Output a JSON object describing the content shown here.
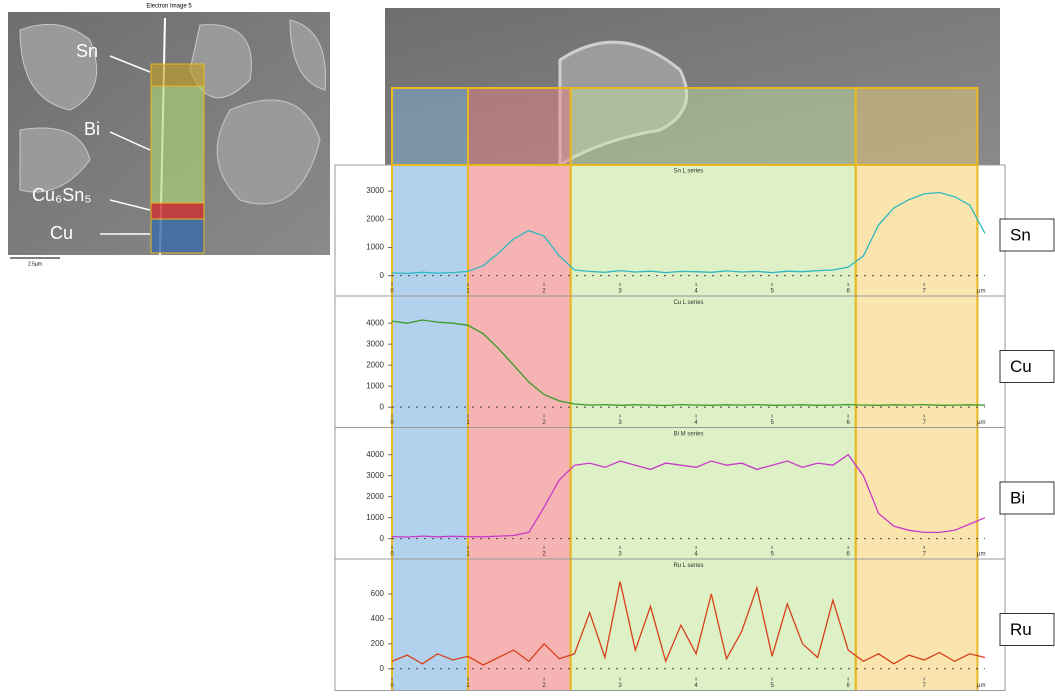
{
  "image": {
    "title": "Electron Image 5",
    "scale": "2.5µm",
    "labels": [
      "Sn",
      "Bi",
      "Cu₆Sn₅",
      "Cu"
    ]
  },
  "overlay": {
    "regions": [
      {
        "start": 0,
        "end": 1.0,
        "color": "#7fb3e0"
      },
      {
        "start": 1.0,
        "end": 2.35,
        "color": "#f08080"
      },
      {
        "start": 2.35,
        "end": 6.1,
        "color": "#c6e6a0"
      },
      {
        "start": 6.1,
        "end": 7.7,
        "color": "#f8d47a"
      }
    ]
  },
  "chart_data": [
    {
      "type": "line",
      "title": "Sn L series",
      "xlabel": "µm",
      "x": [
        0,
        0.2,
        0.4,
        0.6,
        0.8,
        1.0,
        1.2,
        1.4,
        1.6,
        1.8,
        2.0,
        2.2,
        2.4,
        2.6,
        2.8,
        3.0,
        3.2,
        3.4,
        3.6,
        3.8,
        4.0,
        4.2,
        4.4,
        4.6,
        4.8,
        5.0,
        5.2,
        5.4,
        5.6,
        5.8,
        6.0,
        6.2,
        6.4,
        6.6,
        6.8,
        7.0,
        7.2,
        7.4,
        7.6,
        7.8
      ],
      "xlim": [
        0,
        7.8
      ],
      "xticks": [
        0,
        1,
        2,
        3,
        4,
        5,
        6,
        7
      ],
      "ylim": [
        -260,
        3500
      ],
      "yticks": [
        0,
        1000,
        2000,
        3000
      ],
      "series": [
        {
          "name": "Sn",
          "color": "#2fb8c0",
          "values": [
            100,
            80,
            120,
            90,
            110,
            150,
            350,
            800,
            1300,
            1600,
            1400,
            700,
            200,
            150,
            120,
            180,
            130,
            160,
            110,
            150,
            140,
            120,
            170,
            130,
            150,
            110,
            160,
            140,
            180,
            200,
            300,
            700,
            1800,
            2400,
            2700,
            2900,
            2950,
            2800,
            2500,
            1500
          ]
        }
      ]
    },
    {
      "type": "line",
      "title": "Cu L series",
      "xlabel": "µm",
      "x": [
        0,
        0.2,
        0.4,
        0.6,
        0.8,
        1.0,
        1.2,
        1.4,
        1.6,
        1.8,
        2.0,
        2.2,
        2.4,
        2.6,
        2.8,
        3.0,
        3.2,
        3.4,
        3.6,
        3.8,
        4.0,
        4.2,
        4.4,
        4.6,
        4.8,
        5.0,
        5.2,
        5.4,
        5.6,
        5.8,
        6.0,
        6.2,
        6.4,
        6.6,
        6.8,
        7.0,
        7.2,
        7.4,
        7.6,
        7.8
      ],
      "xlim": [
        0,
        7.8
      ],
      "xticks": [
        0,
        1,
        2,
        3,
        4,
        5,
        6,
        7
      ],
      "ylim": [
        -350,
        4700
      ],
      "yticks": [
        0,
        1000,
        2000,
        3000,
        4000
      ],
      "series": [
        {
          "name": "Cu",
          "color": "#3a9a28",
          "values": [
            4100,
            4000,
            4150,
            4050,
            4000,
            3900,
            3500,
            2800,
            2000,
            1200,
            600,
            300,
            150,
            100,
            120,
            90,
            110,
            100,
            80,
            120,
            100,
            90,
            110,
            100,
            120,
            90,
            100,
            110,
            90,
            100,
            120,
            100,
            90,
            110,
            100,
            120,
            90,
            100,
            110,
            100
          ]
        }
      ]
    },
    {
      "type": "line",
      "title": "Bi M series",
      "xlabel": "µm",
      "x": [
        0,
        0.2,
        0.4,
        0.6,
        0.8,
        1.0,
        1.2,
        1.4,
        1.6,
        1.8,
        2.0,
        2.2,
        2.4,
        2.6,
        2.8,
        3.0,
        3.2,
        3.4,
        3.6,
        3.8,
        4.0,
        4.2,
        4.4,
        4.6,
        4.8,
        5.0,
        5.2,
        5.4,
        5.6,
        5.8,
        6.0,
        6.2,
        6.4,
        6.6,
        6.8,
        7.0,
        7.2,
        7.4,
        7.6,
        7.8
      ],
      "xlim": [
        0,
        7.8
      ],
      "xticks": [
        0,
        1,
        2,
        3,
        4,
        5,
        6,
        7
      ],
      "ylim": [
        -350,
        4700
      ],
      "yticks": [
        0,
        1000,
        2000,
        3000,
        4000
      ],
      "series": [
        {
          "name": "Bi",
          "color": "#c83ac8",
          "values": [
            100,
            80,
            120,
            90,
            110,
            100,
            90,
            120,
            150,
            300,
            1500,
            2800,
            3500,
            3600,
            3400,
            3700,
            3500,
            3300,
            3600,
            3500,
            3400,
            3700,
            3500,
            3600,
            3300,
            3500,
            3700,
            3400,
            3600,
            3500,
            4000,
            3000,
            1200,
            600,
            400,
            300,
            300,
            400,
            700,
            1000
          ]
        }
      ]
    },
    {
      "type": "line",
      "title": "Ru L series",
      "xlabel": "µm",
      "x": [
        0,
        0.2,
        0.4,
        0.6,
        0.8,
        1.0,
        1.2,
        1.4,
        1.6,
        1.8,
        2.0,
        2.2,
        2.4,
        2.6,
        2.8,
        3.0,
        3.2,
        3.4,
        3.6,
        3.8,
        4.0,
        4.2,
        4.4,
        4.6,
        4.8,
        5.0,
        5.2,
        5.4,
        5.6,
        5.8,
        6.0,
        6.2,
        6.4,
        6.6,
        6.8,
        7.0,
        7.2,
        7.4,
        7.6,
        7.8
      ],
      "xlim": [
        0,
        7.8
      ],
      "xticks": [
        0,
        1,
        2,
        3,
        4,
        5,
        6,
        7
      ],
      "ylim": [
        -70,
        780
      ],
      "yticks": [
        0,
        200,
        400,
        600
      ],
      "series": [
        {
          "name": "Ru",
          "color": "#d8401a",
          "values": [
            60,
            110,
            40,
            120,
            70,
            100,
            30,
            90,
            150,
            60,
            200,
            80,
            120,
            450,
            90,
            700,
            150,
            500,
            60,
            350,
            120,
            600,
            80,
            300,
            650,
            100,
            520,
            200,
            90,
            550,
            150,
            60,
            120,
            40,
            110,
            70,
            130,
            60,
            120,
            90
          ]
        }
      ]
    }
  ]
}
